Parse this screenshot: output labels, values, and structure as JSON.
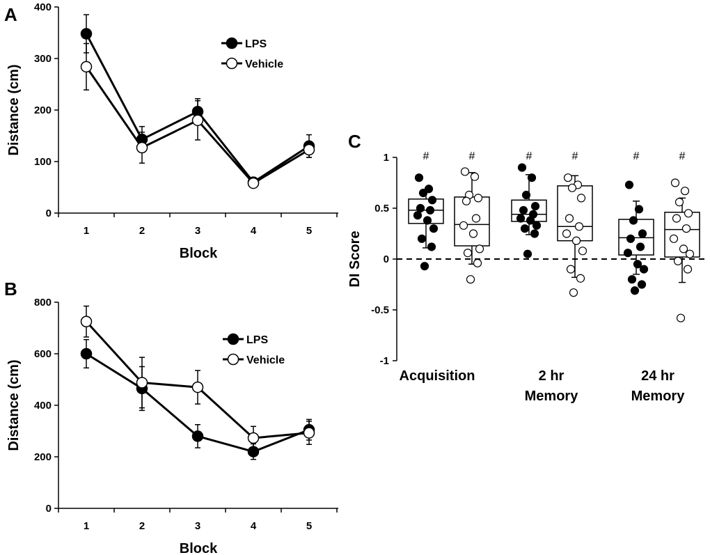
{
  "chart_data": [
    {
      "panel": "A",
      "type": "line",
      "xlabel": "Block",
      "ylabel": "Distance (cm)",
      "ylim": [
        0,
        400
      ],
      "yticks": [
        0,
        100,
        200,
        300,
        400
      ],
      "categories": [
        "1",
        "2",
        "3",
        "4",
        "5"
      ],
      "legend_position": "top-right",
      "series": [
        {
          "name": "LPS",
          "marker": "filled",
          "values": [
            348,
            143,
            197,
            60,
            130
          ],
          "errors": [
            37,
            25,
            25,
            5,
            22
          ]
        },
        {
          "name": "Vehicle",
          "marker": "open",
          "values": [
            284,
            127,
            180,
            58,
            123
          ],
          "errors": [
            45,
            30,
            38,
            5,
            15
          ]
        }
      ]
    },
    {
      "panel": "B",
      "type": "line",
      "xlabel": "Block",
      "ylabel": "Distance (cm)",
      "ylim": [
        0,
        800
      ],
      "yticks": [
        0,
        200,
        400,
        600,
        800
      ],
      "categories": [
        "1",
        "2",
        "3",
        "4",
        "5"
      ],
      "legend_position": "top-right",
      "series": [
        {
          "name": "LPS",
          "marker": "filled",
          "values": [
            600,
            465,
            280,
            220,
            305
          ],
          "errors": [
            55,
            85,
            45,
            30,
            40
          ]
        },
        {
          "name": "Vehicle",
          "marker": "open",
          "values": [
            725,
            488,
            470,
            273,
            293
          ],
          "errors": [
            60,
            98,
            65,
            45,
            45
          ]
        }
      ]
    },
    {
      "panel": "C",
      "type": "box",
      "ylabel": "DI Score",
      "ylim": [
        -1,
        1
      ],
      "yticks": [
        "-1",
        "-0.5",
        "0",
        "0.5",
        "1"
      ],
      "reference_line": 0,
      "significance_marker": "#",
      "categories": [
        {
          "lines": [
            "Acquisition"
          ]
        },
        {
          "lines": [
            "2 hr",
            "Memory"
          ]
        },
        {
          "lines": [
            "24 hr",
            "Memory"
          ]
        }
      ],
      "groups": [
        {
          "category": 0,
          "series": "LPS",
          "marker": "filled",
          "q1": 0.35,
          "median": 0.48,
          "q3": 0.59,
          "whisker_low": 0.11,
          "whisker_high": 0.68,
          "points": [
            0.8,
            0.69,
            0.65,
            0.58,
            0.5,
            0.48,
            0.43,
            0.38,
            0.3,
            0.2,
            0.12,
            -0.07
          ]
        },
        {
          "category": 0,
          "series": "Vehicle",
          "marker": "open",
          "q1": 0.13,
          "median": 0.34,
          "q3": 0.61,
          "whisker_low": -0.05,
          "whisker_high": 0.85,
          "points": [
            0.86,
            0.81,
            0.63,
            0.6,
            0.57,
            0.4,
            0.33,
            0.25,
            0.1,
            0.06,
            -0.04,
            -0.2
          ]
        },
        {
          "category": 1,
          "series": "LPS",
          "marker": "filled",
          "q1": 0.37,
          "median": 0.44,
          "q3": 0.58,
          "whisker_low": 0.24,
          "whisker_high": 0.83,
          "points": [
            0.9,
            0.8,
            0.63,
            0.52,
            0.48,
            0.44,
            0.4,
            0.38,
            0.33,
            0.3,
            0.25,
            0.05
          ]
        },
        {
          "category": 1,
          "series": "Vehicle",
          "marker": "open",
          "q1": 0.18,
          "median": 0.32,
          "q3": 0.72,
          "whisker_low": -0.18,
          "whisker_high": 0.82,
          "points": [
            0.8,
            0.73,
            0.7,
            0.6,
            0.4,
            0.32,
            0.25,
            0.18,
            0.08,
            -0.1,
            -0.19,
            -0.33
          ]
        },
        {
          "category": 2,
          "series": "LPS",
          "marker": "filled",
          "q1": 0.04,
          "median": 0.21,
          "q3": 0.39,
          "whisker_low": -0.15,
          "whisker_high": 0.57,
          "points": [
            0.73,
            0.49,
            0.38,
            0.25,
            0.2,
            0.12,
            0.06,
            -0.05,
            -0.1,
            -0.2,
            -0.25,
            -0.31
          ]
        },
        {
          "category": 2,
          "series": "Vehicle",
          "marker": "open",
          "q1": 0.02,
          "median": 0.29,
          "q3": 0.46,
          "whisker_low": -0.23,
          "whisker_high": 0.6,
          "points": [
            0.75,
            0.67,
            0.56,
            0.45,
            0.4,
            0.3,
            0.2,
            0.1,
            0.05,
            -0.02,
            -0.1,
            -0.58
          ]
        }
      ]
    }
  ]
}
